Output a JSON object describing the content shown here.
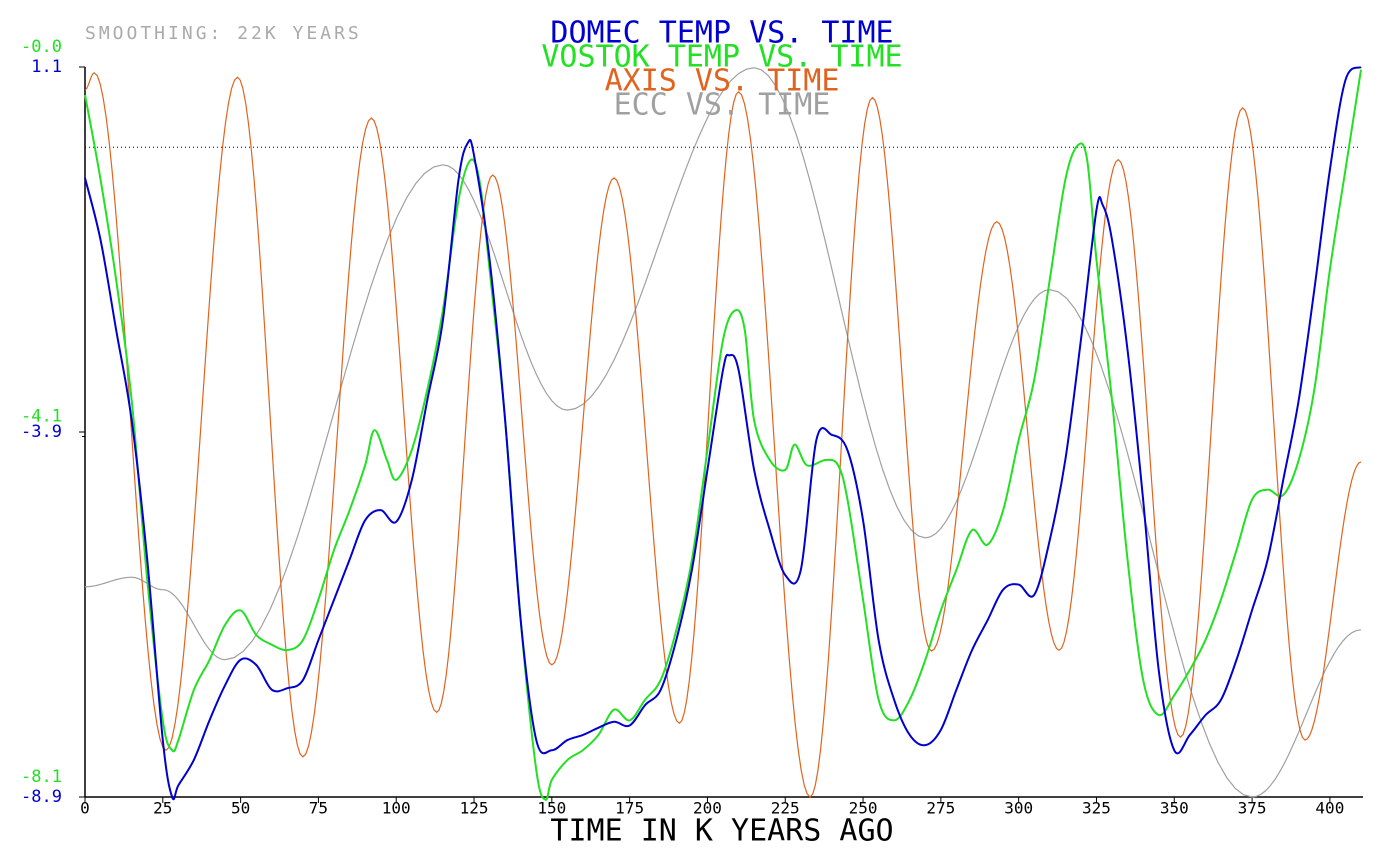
{
  "chart_data": {
    "type": "line",
    "subtitle": "SMOOTHING: 22K YEARS",
    "x_label": "TIME IN K YEARS AGO",
    "xlim": [
      0,
      410
    ],
    "xticks": [
      0,
      25,
      50,
      75,
      100,
      125,
      150,
      175,
      200,
      225,
      250,
      275,
      300,
      325,
      350,
      375,
      400
    ],
    "ylim": [
      -8.9,
      1.1
    ],
    "yticks": [
      -8.9,
      -3.9,
      1.1
    ],
    "y2lim": [
      -8.1,
      0
    ],
    "y2ticks": [
      -8.1,
      -4.1,
      {
        "value": 0,
        "label": "-0.0"
      }
    ],
    "hline": 0,
    "series": [
      {
        "name": "DOMEC TEMP VS. TIME",
        "color": "#0000d0",
        "smooth": "spline",
        "x": [
          0,
          5,
          10,
          15,
          20,
          25,
          28,
          30,
          35,
          40,
          45,
          50,
          55,
          60,
          65,
          70,
          75,
          80,
          85,
          90,
          95,
          100,
          105,
          110,
          115,
          120,
          123,
          125,
          130,
          135,
          140,
          145,
          150,
          155,
          160,
          165,
          170,
          175,
          180,
          185,
          190,
          195,
          200,
          205,
          207,
          210,
          215,
          220,
          225,
          230,
          235,
          240,
          245,
          250,
          255,
          260,
          265,
          270,
          275,
          280,
          285,
          290,
          295,
          300,
          305,
          310,
          315,
          320,
          325,
          327,
          330,
          335,
          340,
          345,
          350,
          355,
          360,
          365,
          370,
          375,
          380,
          385,
          390,
          395,
          400,
          405,
          410
        ],
        "values": [
          -0.42,
          -1.27,
          -2.5,
          -3.74,
          -5.65,
          -8.12,
          -8.9,
          -8.74,
          -8.39,
          -7.85,
          -7.37,
          -7.02,
          -7.09,
          -7.43,
          -7.41,
          -7.3,
          -6.75,
          -6.2,
          -5.65,
          -5.11,
          -4.97,
          -5.13,
          -4.56,
          -3.46,
          -2.37,
          -0.45,
          0.06,
          -0.11,
          -1.54,
          -3.74,
          -6.48,
          -8.12,
          -8.26,
          -8.12,
          -8.05,
          -7.95,
          -7.87,
          -7.92,
          -7.64,
          -7.43,
          -6.75,
          -5.79,
          -4.42,
          -3.05,
          -2.85,
          -3.05,
          -4.42,
          -5.24,
          -5.86,
          -5.79,
          -4.01,
          -3.94,
          -4.15,
          -5.11,
          -6.75,
          -7.57,
          -8.05,
          -8.19,
          -7.98,
          -7.43,
          -6.89,
          -6.48,
          -6.06,
          -5.99,
          -6.13,
          -5.38,
          -4.28,
          -2.64,
          -0.86,
          -0.79,
          -1.27,
          -2.78,
          -4.83,
          -7.16,
          -8.26,
          -8.05,
          -7.78,
          -7.57,
          -7.02,
          -6.34,
          -5.65,
          -4.56,
          -3.46,
          -1.95,
          -0.31,
          0.92,
          1.1
        ]
      },
      {
        "name": "VOSTOK TEMP VS. TIME",
        "color": "#22e022",
        "axis": "y2",
        "smooth": "spline",
        "x": [
          0,
          5,
          10,
          15,
          20,
          25,
          28,
          30,
          35,
          40,
          45,
          50,
          55,
          60,
          65,
          70,
          75,
          80,
          85,
          90,
          93,
          97,
          100,
          105,
          110,
          115,
          120,
          124,
          127,
          130,
          135,
          140,
          145,
          148,
          150,
          155,
          160,
          165,
          170,
          175,
          180,
          185,
          190,
          195,
          200,
          205,
          209,
          212,
          215,
          220,
          225,
          228,
          232,
          238,
          242,
          245,
          250,
          255,
          260,
          265,
          270,
          275,
          280,
          285,
          290,
          295,
          300,
          305,
          310,
          315,
          319,
          322,
          325,
          330,
          335,
          340,
          345,
          350,
          355,
          360,
          365,
          370,
          375,
          380,
          385,
          390,
          395,
          400,
          405,
          410
        ],
        "values": [
          -0.31,
          -1.25,
          -2.36,
          -3.7,
          -5.69,
          -7.25,
          -7.58,
          -7.47,
          -6.91,
          -6.58,
          -6.19,
          -6.03,
          -6.3,
          -6.41,
          -6.47,
          -6.36,
          -5.91,
          -5.36,
          -4.92,
          -4.42,
          -4.03,
          -4.36,
          -4.58,
          -4.25,
          -3.58,
          -2.7,
          -1.48,
          -1.03,
          -1.31,
          -2.25,
          -3.92,
          -6.14,
          -7.8,
          -8.13,
          -7.91,
          -7.69,
          -7.58,
          -7.41,
          -7.13,
          -7.25,
          -7.02,
          -6.8,
          -6.25,
          -5.47,
          -4.25,
          -3.03,
          -2.7,
          -2.92,
          -3.92,
          -4.36,
          -4.47,
          -4.19,
          -4.42,
          -4.36,
          -4.42,
          -4.8,
          -5.91,
          -7.02,
          -7.25,
          -7.02,
          -6.58,
          -6.03,
          -5.58,
          -5.14,
          -5.3,
          -4.92,
          -4.14,
          -3.47,
          -2.36,
          -1.25,
          -0.87,
          -1.03,
          -2.14,
          -3.7,
          -5.47,
          -6.8,
          -7.19,
          -6.97,
          -6.69,
          -6.36,
          -5.91,
          -5.36,
          -4.8,
          -4.69,
          -4.75,
          -4.36,
          -3.58,
          -2.25,
          -1.14,
          -0.03
        ]
      },
      {
        "name": "AXIS VS. TIME",
        "color": "#e0641e",
        "smooth": "cosine",
        "x": [
          0,
          3,
          26,
          49,
          70,
          92,
          113,
          131,
          150,
          170,
          191,
          210,
          233,
          253,
          272,
          293,
          313,
          332,
          352,
          372,
          392,
          410
        ],
        "values": [
          0.79,
          1.02,
          -8.26,
          0.96,
          -8.35,
          0.4,
          -7.74,
          -0.38,
          -7.09,
          -0.42,
          -7.89,
          0.76,
          -8.9,
          0.68,
          -6.9,
          -1.02,
          -6.89,
          -0.17,
          -8.08,
          0.54,
          -8.12,
          -4.31
        ]
      },
      {
        "name": "ECC VS. TIME",
        "color": "#a0a0a0",
        "smooth": "cosine",
        "x": [
          0,
          15,
          25,
          45,
          115,
          155,
          215,
          270,
          310,
          375,
          410
        ],
        "values": [
          -6.02,
          -5.89,
          -6.06,
          -7.02,
          -0.24,
          -3.6,
          1.09,
          -5.35,
          -1.95,
          -8.9,
          -6.61
        ]
      }
    ]
  }
}
